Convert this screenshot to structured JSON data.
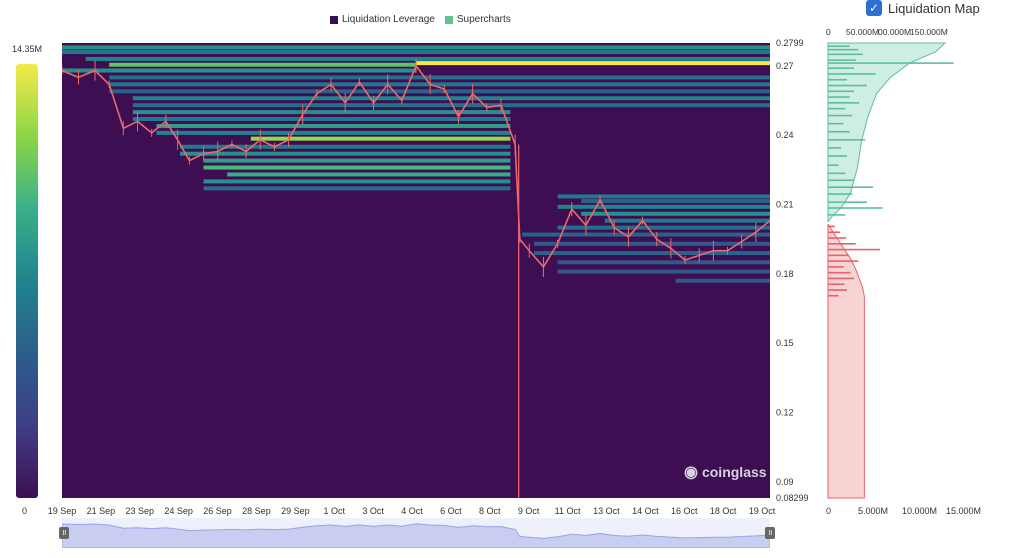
{
  "legend": {
    "items": [
      {
        "label": "Liquidation Leverage",
        "color": "#3b0f4f"
      },
      {
        "label": "Supercharts",
        "color": "#5ac88a"
      }
    ]
  },
  "toggle": {
    "label": "Liquidation Map",
    "checked": true
  },
  "colorbar": {
    "max_label": "14.35M",
    "min_label": "0",
    "stops": [
      "#f5e94a",
      "#8bd646",
      "#3aaf8a",
      "#20838d",
      "#2b5e8c",
      "#3f3e85",
      "#3d0f52"
    ]
  },
  "watermark": "coinglass",
  "chart_data": [
    {
      "type": "heatmap",
      "ylim": [
        0.08299,
        0.2799
      ],
      "y_ticks": [
        "0.2799",
        "0.27",
        "0.24",
        "0.21",
        "0.18",
        "0.15",
        "0.12",
        "0.09",
        "0.08299"
      ],
      "y_tick_values": [
        0.2799,
        0.27,
        0.24,
        0.21,
        0.18,
        0.15,
        0.12,
        0.09,
        0.08299
      ],
      "x_ticks": [
        "19 Sep",
        "21 Sep",
        "23 Sep",
        "24 Sep",
        "26 Sep",
        "28 Sep",
        "29 Sep",
        "1 Oct",
        "3 Oct",
        "4 Oct",
        "6 Oct",
        "8 Oct",
        "9 Oct",
        "11 Oct",
        "13 Oct",
        "14 Oct",
        "16 Oct",
        "18 Oct",
        "19 Oct"
      ],
      "background_color": "#3d0f52",
      "price_series": [
        {
          "x": 0,
          "y": 0.268
        },
        {
          "x": 0.7,
          "y": 0.265
        },
        {
          "x": 1.4,
          "y": 0.268
        },
        {
          "x": 2.0,
          "y": 0.262
        },
        {
          "x": 2.6,
          "y": 0.243
        },
        {
          "x": 3.2,
          "y": 0.246
        },
        {
          "x": 3.8,
          "y": 0.241
        },
        {
          "x": 4.4,
          "y": 0.246
        },
        {
          "x": 4.9,
          "y": 0.238
        },
        {
          "x": 5.4,
          "y": 0.229
        },
        {
          "x": 6.0,
          "y": 0.232
        },
        {
          "x": 6.6,
          "y": 0.233
        },
        {
          "x": 7.2,
          "y": 0.236
        },
        {
          "x": 7.8,
          "y": 0.233
        },
        {
          "x": 8.4,
          "y": 0.238
        },
        {
          "x": 9.0,
          "y": 0.235
        },
        {
          "x": 9.6,
          "y": 0.238
        },
        {
          "x": 10.2,
          "y": 0.249
        },
        {
          "x": 10.8,
          "y": 0.258
        },
        {
          "x": 11.4,
          "y": 0.262
        },
        {
          "x": 12.0,
          "y": 0.254
        },
        {
          "x": 12.6,
          "y": 0.263
        },
        {
          "x": 13.2,
          "y": 0.254
        },
        {
          "x": 13.8,
          "y": 0.262
        },
        {
          "x": 14.4,
          "y": 0.255
        },
        {
          "x": 15.0,
          "y": 0.27
        },
        {
          "x": 15.6,
          "y": 0.262
        },
        {
          "x": 16.2,
          "y": 0.26
        },
        {
          "x": 16.8,
          "y": 0.248
        },
        {
          "x": 17.4,
          "y": 0.258
        },
        {
          "x": 18.0,
          "y": 0.252
        },
        {
          "x": 18.6,
          "y": 0.253
        },
        {
          "x": 19.2,
          "y": 0.236
        },
        {
          "x": 19.4,
          "y": 0.195
        },
        {
          "x": 19.8,
          "y": 0.19
        },
        {
          "x": 20.4,
          "y": 0.183
        },
        {
          "x": 21.0,
          "y": 0.193
        },
        {
          "x": 21.6,
          "y": 0.208
        },
        {
          "x": 22.2,
          "y": 0.201
        },
        {
          "x": 22.8,
          "y": 0.212
        },
        {
          "x": 23.4,
          "y": 0.2
        },
        {
          "x": 24.0,
          "y": 0.196
        },
        {
          "x": 24.6,
          "y": 0.203
        },
        {
          "x": 25.2,
          "y": 0.195
        },
        {
          "x": 25.8,
          "y": 0.191
        },
        {
          "x": 26.4,
          "y": 0.186
        },
        {
          "x": 27.0,
          "y": 0.188
        },
        {
          "x": 27.6,
          "y": 0.19
        },
        {
          "x": 28.2,
          "y": 0.19
        },
        {
          "x": 28.8,
          "y": 0.194
        },
        {
          "x": 29.4,
          "y": 0.198
        },
        {
          "x": 30.0,
          "y": 0.203
        }
      ],
      "crash_wick": {
        "x": 19.35,
        "low": 0.08299
      },
      "liquidation_bands": [
        {
          "y": 0.278,
          "x0": 0,
          "x1": 30,
          "intensity": 0.55
        },
        {
          "y": 0.276,
          "x0": 0,
          "x1": 30,
          "intensity": 0.45
        },
        {
          "y": 0.273,
          "x0": 1,
          "x1": 30,
          "intensity": 0.5
        },
        {
          "y": 0.2712,
          "x0": 15,
          "x1": 30,
          "intensity": 1.0
        },
        {
          "y": 0.2705,
          "x0": 2,
          "x1": 15,
          "intensity": 0.75
        },
        {
          "y": 0.268,
          "x0": 0,
          "x1": 15,
          "intensity": 0.55
        },
        {
          "y": 0.265,
          "x0": 2,
          "x1": 30,
          "intensity": 0.4
        },
        {
          "y": 0.262,
          "x0": 2,
          "x1": 30,
          "intensity": 0.45
        },
        {
          "y": 0.259,
          "x0": 2,
          "x1": 30,
          "intensity": 0.35
        },
        {
          "y": 0.256,
          "x0": 3,
          "x1": 30,
          "intensity": 0.5
        },
        {
          "y": 0.253,
          "x0": 3,
          "x1": 30,
          "intensity": 0.4
        },
        {
          "y": 0.25,
          "x0": 3,
          "x1": 19,
          "intensity": 0.55
        },
        {
          "y": 0.247,
          "x0": 3,
          "x1": 19,
          "intensity": 0.45
        },
        {
          "y": 0.244,
          "x0": 4,
          "x1": 19,
          "intensity": 0.6
        },
        {
          "y": 0.241,
          "x0": 4,
          "x1": 19,
          "intensity": 0.5
        },
        {
          "y": 0.2385,
          "x0": 8,
          "x1": 19,
          "intensity": 0.85
        },
        {
          "y": 0.235,
          "x0": 5,
          "x1": 19,
          "intensity": 0.45
        },
        {
          "y": 0.232,
          "x0": 5,
          "x1": 19,
          "intensity": 0.55
        },
        {
          "y": 0.229,
          "x0": 6,
          "x1": 19,
          "intensity": 0.6
        },
        {
          "y": 0.226,
          "x0": 6,
          "x1": 19,
          "intensity": 0.7
        },
        {
          "y": 0.223,
          "x0": 7,
          "x1": 19,
          "intensity": 0.65
        },
        {
          "y": 0.22,
          "x0": 6,
          "x1": 19,
          "intensity": 0.55
        },
        {
          "y": 0.217,
          "x0": 6,
          "x1": 19,
          "intensity": 0.4
        },
        {
          "y": 0.2135,
          "x0": 21,
          "x1": 30,
          "intensity": 0.45
        },
        {
          "y": 0.2115,
          "x0": 22,
          "x1": 30,
          "intensity": 0.35
        },
        {
          "y": 0.209,
          "x0": 21,
          "x1": 30,
          "intensity": 0.5
        },
        {
          "y": 0.206,
          "x0": 22,
          "x1": 30,
          "intensity": 0.55
        },
        {
          "y": 0.203,
          "x0": 23,
          "x1": 30,
          "intensity": 0.45
        },
        {
          "y": 0.2,
          "x0": 21,
          "x1": 30,
          "intensity": 0.4
        },
        {
          "y": 0.197,
          "x0": 19.5,
          "x1": 30,
          "intensity": 0.35
        },
        {
          "y": 0.193,
          "x0": 20,
          "x1": 30,
          "intensity": 0.3
        },
        {
          "y": 0.189,
          "x0": 20,
          "x1": 30,
          "intensity": 0.35
        },
        {
          "y": 0.185,
          "x0": 21,
          "x1": 30,
          "intensity": 0.3
        },
        {
          "y": 0.181,
          "x0": 21,
          "x1": 30,
          "intensity": 0.3
        },
        {
          "y": 0.177,
          "x0": 26,
          "x1": 30,
          "intensity": 0.3
        }
      ]
    },
    {
      "type": "bar",
      "title": "Liquidation Map",
      "orientation": "horizontal",
      "xlim": [
        0,
        15
      ],
      "x_ticks_bottom": [
        "0",
        "5.000M",
        "10.000M",
        "15.000M"
      ],
      "x_ticks_top": [
        "0",
        "50.000M",
        "00.000M",
        "150.000M"
      ],
      "ylim": [
        0.08299,
        0.2799
      ],
      "series": [
        {
          "color": "#5cbf9a",
          "fill": "#cfeee3",
          "cumulative": [
            {
              "y": 0.2799,
              "x": 13.5
            },
            {
              "y": 0.276,
              "x": 12.4
            },
            {
              "y": 0.2712,
              "x": 9.4
            },
            {
              "y": 0.265,
              "x": 7.2
            },
            {
              "y": 0.258,
              "x": 5.6
            },
            {
              "y": 0.248,
              "x": 4.6
            },
            {
              "y": 0.238,
              "x": 3.9
            },
            {
              "y": 0.226,
              "x": 3.4
            },
            {
              "y": 0.215,
              "x": 2.6
            },
            {
              "y": 0.209,
              "x": 1.6
            },
            {
              "y": 0.205,
              "x": 0.5
            },
            {
              "y": 0.2025,
              "x": 0
            }
          ],
          "bars": [
            {
              "y": 0.2785,
              "v": 2.5
            },
            {
              "y": 0.277,
              "v": 3.5
            },
            {
              "y": 0.275,
              "v": 4.0
            },
            {
              "y": 0.2725,
              "v": 3.2
            },
            {
              "y": 0.2712,
              "v": 14.5
            },
            {
              "y": 0.269,
              "v": 3.0
            },
            {
              "y": 0.2665,
              "v": 5.5
            },
            {
              "y": 0.264,
              "v": 2.2
            },
            {
              "y": 0.2615,
              "v": 4.5
            },
            {
              "y": 0.259,
              "v": 3.0
            },
            {
              "y": 0.2565,
              "v": 2.5
            },
            {
              "y": 0.254,
              "v": 3.6
            },
            {
              "y": 0.2515,
              "v": 2.0
            },
            {
              "y": 0.2485,
              "v": 2.8
            },
            {
              "y": 0.245,
              "v": 1.8
            },
            {
              "y": 0.2415,
              "v": 2.5
            },
            {
              "y": 0.238,
              "v": 4.3
            },
            {
              "y": 0.2345,
              "v": 1.5
            },
            {
              "y": 0.231,
              "v": 2.2
            },
            {
              "y": 0.227,
              "v": 1.2
            },
            {
              "y": 0.2235,
              "v": 2.0
            },
            {
              "y": 0.2205,
              "v": 3.0
            },
            {
              "y": 0.2175,
              "v": 5.2
            },
            {
              "y": 0.2145,
              "v": 2.8
            },
            {
              "y": 0.211,
              "v": 4.5
            },
            {
              "y": 0.2085,
              "v": 6.3
            },
            {
              "y": 0.2055,
              "v": 2.0
            }
          ]
        },
        {
          "color": "#e8606b",
          "fill": "#f6d4d4",
          "cumulative": [
            {
              "y": 0.2015,
              "x": 0
            },
            {
              "y": 0.198,
              "x": 0.6
            },
            {
              "y": 0.194,
              "x": 1.3
            },
            {
              "y": 0.19,
              "x": 2.0
            },
            {
              "y": 0.186,
              "x": 2.7
            },
            {
              "y": 0.182,
              "x": 3.2
            },
            {
              "y": 0.178,
              "x": 3.6
            },
            {
              "y": 0.174,
              "x": 4.0
            },
            {
              "y": 0.17,
              "x": 4.2
            },
            {
              "y": 0.165,
              "x": 4.2
            },
            {
              "y": 0.08299,
              "x": 4.2
            }
          ],
          "bars": [
            {
              "y": 0.2005,
              "v": 0.8
            },
            {
              "y": 0.198,
              "v": 1.4
            },
            {
              "y": 0.1955,
              "v": 2.1
            },
            {
              "y": 0.193,
              "v": 3.2
            },
            {
              "y": 0.1905,
              "v": 6.0
            },
            {
              "y": 0.188,
              "v": 2.4
            },
            {
              "y": 0.1855,
              "v": 3.5
            },
            {
              "y": 0.183,
              "v": 1.8
            },
            {
              "y": 0.1805,
              "v": 2.6
            },
            {
              "y": 0.178,
              "v": 3.0
            },
            {
              "y": 0.1755,
              "v": 1.9
            },
            {
              "y": 0.173,
              "v": 2.2
            },
            {
              "y": 0.1705,
              "v": 1.2
            }
          ]
        }
      ]
    }
  ]
}
